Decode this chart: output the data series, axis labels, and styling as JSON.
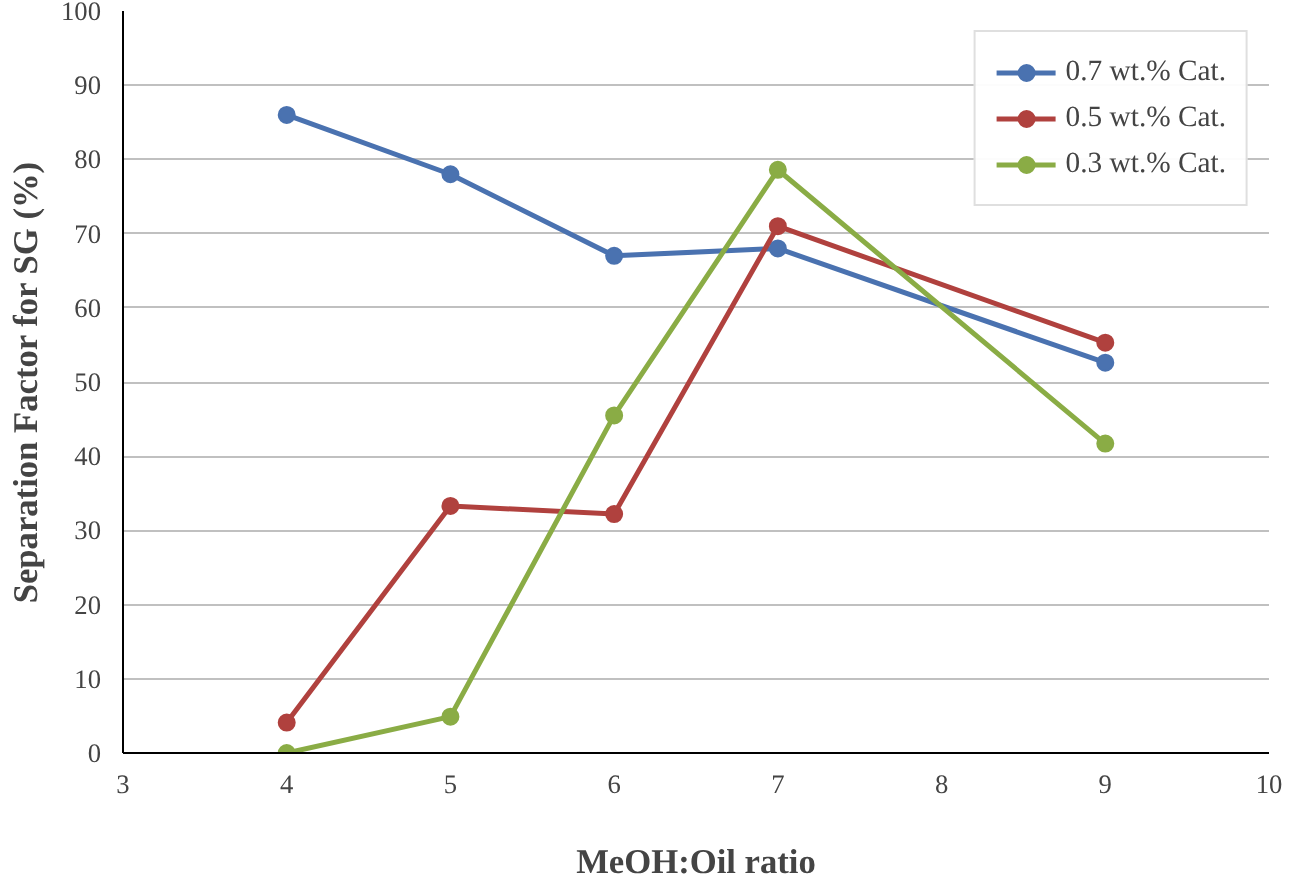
{
  "chart_data": {
    "type": "line",
    "xlabel": "MeOH:Oil ratio",
    "ylabel": "Separation Factor for SG (%)",
    "x": [
      4,
      5,
      6,
      7,
      9
    ],
    "series": [
      {
        "name": "0.7 wt.% Cat.",
        "color": "#4a72b0",
        "values": [
          86,
          78,
          67,
          68,
          52.6
        ]
      },
      {
        "name": "0.5 wt.% Cat.",
        "color": "#b0413e",
        "values": [
          4.1,
          33.3,
          32.2,
          71,
          55.3
        ]
      },
      {
        "name": "0.3 wt.% Cat.",
        "color": "#8aac45",
        "values": [
          0,
          4.9,
          45.5,
          78.6,
          41.7
        ]
      }
    ],
    "xlim": [
      3,
      10
    ],
    "xticks": [
      3,
      4,
      5,
      6,
      7,
      8,
      9,
      10
    ],
    "ylim": [
      0,
      100
    ],
    "yticks": [
      0,
      10,
      20,
      30,
      40,
      50,
      60,
      70,
      80,
      90,
      100
    ],
    "grid": "y",
    "legend": "top right",
    "marker": "circle",
    "line_style": "solid"
  }
}
